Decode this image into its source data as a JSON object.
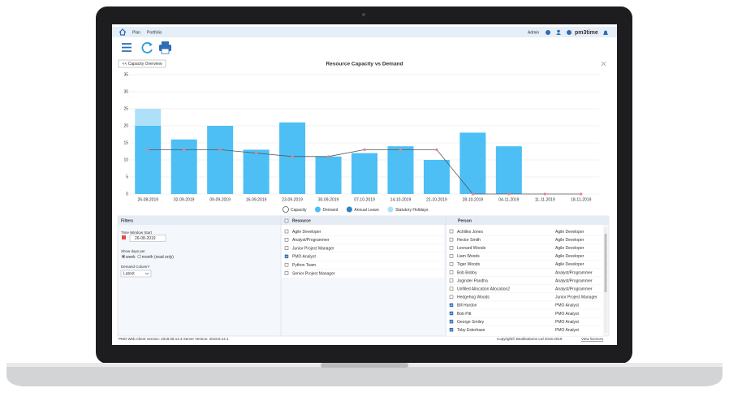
{
  "nav": {
    "links": [
      "Plan",
      "Portfolio"
    ],
    "user": "Admin",
    "brand": "pm3time"
  },
  "back_button": "<< Capacity Overview",
  "chart_data": {
    "type": "bar",
    "title": "Resource Capacity vs Demand",
    "categories": [
      "26-08-2019",
      "02-09-2019",
      "09-09-2019",
      "16-09-2019",
      "23-09-2019",
      "30-09-2019",
      "07-10-2019",
      "14-10-2019",
      "21-10-2019",
      "28-10-2019",
      "04-11-2019",
      "11-11-2019",
      "18-11-2019"
    ],
    "series": [
      {
        "name": "Capacity",
        "type": "line",
        "color": "#555555",
        "marker_color": "#e8808f",
        "values": [
          13,
          13,
          13,
          12,
          11,
          11,
          13,
          13,
          13,
          0,
          0,
          0,
          0
        ]
      },
      {
        "name": "Demand",
        "type": "bar",
        "color": "#4dbff5",
        "values": [
          20,
          16,
          20,
          13,
          21,
          11,
          12,
          14,
          10,
          18,
          14,
          0,
          0
        ]
      },
      {
        "name": "Annual Leave",
        "type": "bar",
        "color": "#2f7fc4",
        "values": [
          0,
          0,
          0,
          0,
          0,
          0,
          0,
          0,
          0,
          0,
          0,
          0,
          0
        ]
      },
      {
        "name": "Statutory Holidays",
        "type": "bar",
        "color": "#aee0fa",
        "values": [
          5,
          0,
          0,
          0,
          0,
          0,
          0,
          0,
          0,
          0,
          0,
          0,
          0
        ]
      }
    ],
    "ylim": [
      0,
      35
    ],
    "yticks": [
      0,
      5,
      10,
      15,
      20,
      25,
      30,
      35
    ],
    "grid": true,
    "stacked": true
  },
  "filters": {
    "title": "Filters",
    "time_window_label": "Time Window Start",
    "date": "26-08-2019",
    "show_days_label": "Show days per",
    "options": [
      "week",
      "month (read only)"
    ],
    "selected_option": 0,
    "demand_column_label": "Demand Column*",
    "demand_column_value": "Latest"
  },
  "resource": {
    "header": "Resource",
    "items": [
      {
        "label": "Agile Developer",
        "checked": false
      },
      {
        "label": "Analyst/Programmer",
        "checked": false
      },
      {
        "label": "Junior Project Manager",
        "checked": false
      },
      {
        "label": "PMO Analyst",
        "checked": true
      },
      {
        "label": "Python Team",
        "checked": false
      },
      {
        "label": "Senior Project Manager",
        "checked": false
      }
    ]
  },
  "person": {
    "header": "Person",
    "rows": [
      {
        "name": "Achilles Jones",
        "role": "Agile Developer",
        "checked": false
      },
      {
        "name": "Hector Smith",
        "role": "Agile Developer",
        "checked": false
      },
      {
        "name": "Leonard Woods",
        "role": "Agile Developer",
        "checked": false
      },
      {
        "name": "Liam Woods",
        "role": "Agile Developer",
        "checked": false
      },
      {
        "name": "Tiger Woods",
        "role": "Agile Developer",
        "checked": false
      },
      {
        "name": "Bob Bobby",
        "role": "Analyst/Programmer",
        "checked": false
      },
      {
        "name": "Joginder Pandha",
        "role": "Analyst/Programmer",
        "checked": false
      },
      {
        "name": "Unfilled Allocation Allocation2",
        "role": "Analyst/Programmer",
        "checked": false
      },
      {
        "name": "Hedgehog Woods",
        "role": "Junior Project Manager",
        "checked": false
      },
      {
        "name": "Bill Hardon",
        "role": "PMO Analyst",
        "checked": true
      },
      {
        "name": "Bob Pitt",
        "role": "PMO Analyst",
        "checked": true
      },
      {
        "name": "George Smiley",
        "role": "PMO Analyst",
        "checked": true
      },
      {
        "name": "Toby Esterhase",
        "role": "PMO Analyst",
        "checked": true
      }
    ]
  },
  "footer": {
    "version": "PMO Web Client Version: 2019.08.14.4 Server Version: 2019.8.14.1",
    "copyright": "Copyright© Beakbottoms Ltd 2016-2019",
    "licences_link": "View licences"
  }
}
